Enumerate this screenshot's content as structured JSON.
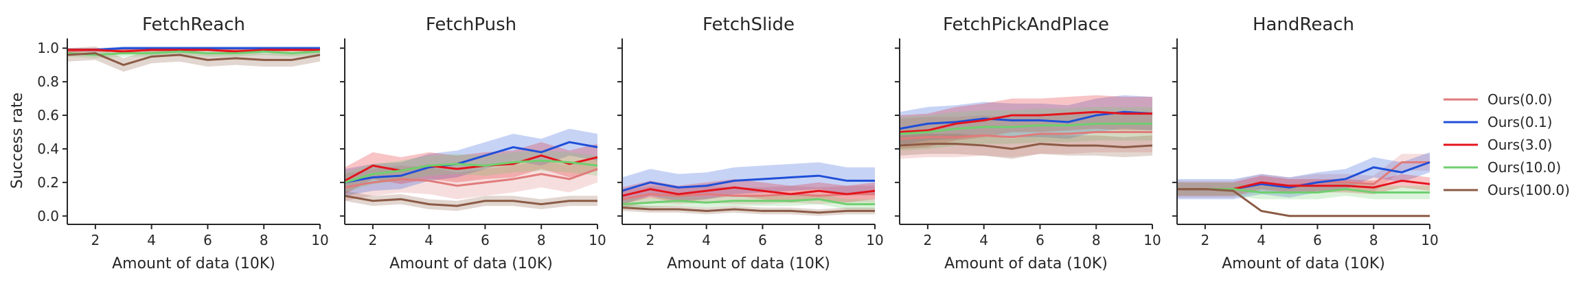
{
  "figure": {
    "ylabel": "Success rate",
    "xlabel": "Amount of data (10K)"
  },
  "legend": {
    "position": "right",
    "entries": [
      "Ours(0.0)",
      "Ours(0.1)",
      "Ours(3.0)",
      "Ours(10.0)",
      "Ours(100.0)"
    ]
  },
  "chart_data": [
    {
      "type": "line",
      "title": "FetchReach",
      "xlabel": "Amount of data (10K)",
      "ylabel": "Success rate",
      "x": [
        1,
        2,
        3,
        4,
        5,
        6,
        7,
        8,
        9,
        10
      ],
      "xlim": [
        1,
        10
      ],
      "ylim": [
        -0.05,
        1.05
      ],
      "xticks": [
        2,
        4,
        6,
        8,
        10
      ],
      "yticks": [
        0.0,
        0.2,
        0.4,
        0.6,
        0.8,
        1.0
      ],
      "grid": false,
      "series": [
        {
          "name": "Ours(0.0)",
          "color": "#e07b7b",
          "values": [
            0.98,
            0.99,
            0.99,
            0.99,
            0.99,
            0.99,
            0.99,
            0.99,
            0.99,
            0.99
          ],
          "band": 0.01
        },
        {
          "name": "Ours(0.1)",
          "color": "#1f4fd8",
          "values": [
            0.99,
            0.99,
            1.0,
            1.0,
            1.0,
            1.0,
            1.0,
            1.0,
            1.0,
            1.0
          ],
          "band": 0.01
        },
        {
          "name": "Ours(3.0)",
          "color": "#e3141c",
          "values": [
            0.99,
            0.99,
            0.98,
            0.99,
            0.99,
            0.99,
            0.98,
            0.99,
            0.99,
            0.99
          ],
          "band": 0.01
        },
        {
          "name": "Ours(10.0)",
          "color": "#6fcf6f",
          "values": [
            0.97,
            0.96,
            0.97,
            0.97,
            0.98,
            0.97,
            0.97,
            0.98,
            0.97,
            0.98
          ],
          "band": 0.02
        },
        {
          "name": "Ours(100.0)",
          "color": "#8b5a45",
          "values": [
            0.96,
            0.97,
            0.9,
            0.95,
            0.96,
            0.93,
            0.94,
            0.93,
            0.93,
            0.96
          ],
          "band": 0.04
        }
      ]
    },
    {
      "type": "line",
      "title": "FetchPush",
      "xlabel": "Amount of data (10K)",
      "x": [
        1,
        2,
        3,
        4,
        5,
        6,
        7,
        8,
        9,
        10
      ],
      "xlim": [
        1,
        10
      ],
      "ylim": [
        -0.05,
        1.05
      ],
      "xticks": [
        2,
        4,
        6,
        8,
        10
      ],
      "yticks": [
        0.0,
        0.2,
        0.4,
        0.6,
        0.8,
        1.0
      ],
      "grid": false,
      "series": [
        {
          "name": "Ours(0.0)",
          "color": "#e07b7b",
          "values": [
            0.17,
            0.2,
            0.22,
            0.21,
            0.18,
            0.2,
            0.22,
            0.25,
            0.22,
            0.28
          ],
          "band": 0.08
        },
        {
          "name": "Ours(0.1)",
          "color": "#1f4fd8",
          "values": [
            0.2,
            0.23,
            0.24,
            0.29,
            0.31,
            0.36,
            0.41,
            0.38,
            0.44,
            0.41
          ],
          "band": 0.08
        },
        {
          "name": "Ours(3.0)",
          "color": "#e3141c",
          "values": [
            0.21,
            0.3,
            0.27,
            0.3,
            0.28,
            0.3,
            0.31,
            0.36,
            0.31,
            0.35
          ],
          "band": 0.08
        },
        {
          "name": "Ours(10.0)",
          "color": "#6fcf6f",
          "values": [
            0.2,
            0.25,
            0.27,
            0.3,
            0.31,
            0.3,
            0.32,
            0.33,
            0.32,
            0.3
          ],
          "band": 0.06
        },
        {
          "name": "Ours(100.0)",
          "color": "#8b5a45",
          "values": [
            0.12,
            0.09,
            0.1,
            0.07,
            0.06,
            0.09,
            0.09,
            0.07,
            0.09,
            0.09
          ],
          "band": 0.03
        }
      ]
    },
    {
      "type": "line",
      "title": "FetchSlide",
      "xlabel": "Amount of data (10K)",
      "x": [
        1,
        2,
        3,
        4,
        5,
        6,
        7,
        8,
        9,
        10
      ],
      "xlim": [
        1,
        10
      ],
      "ylim": [
        -0.05,
        1.05
      ],
      "xticks": [
        2,
        4,
        6,
        8,
        10
      ],
      "yticks": [
        0.0,
        0.2,
        0.4,
        0.6,
        0.8,
        1.0
      ],
      "grid": false,
      "series": [
        {
          "name": "Ours(0.0)",
          "color": "#e07b7b",
          "values": [
            0.1,
            0.13,
            0.12,
            0.13,
            0.12,
            0.12,
            0.13,
            0.12,
            0.13,
            0.13
          ],
          "band": 0.05
        },
        {
          "name": "Ours(0.1)",
          "color": "#1f4fd8",
          "values": [
            0.15,
            0.2,
            0.17,
            0.18,
            0.21,
            0.22,
            0.23,
            0.24,
            0.21,
            0.21
          ],
          "band": 0.08
        },
        {
          "name": "Ours(3.0)",
          "color": "#e3141c",
          "values": [
            0.12,
            0.16,
            0.13,
            0.15,
            0.17,
            0.15,
            0.13,
            0.15,
            0.13,
            0.15
          ],
          "band": 0.05
        },
        {
          "name": "Ours(10.0)",
          "color": "#6fcf6f",
          "values": [
            0.07,
            0.08,
            0.09,
            0.08,
            0.09,
            0.09,
            0.09,
            0.1,
            0.07,
            0.07
          ],
          "band": 0.03
        },
        {
          "name": "Ours(100.0)",
          "color": "#8b5a45",
          "values": [
            0.05,
            0.04,
            0.04,
            0.03,
            0.04,
            0.03,
            0.03,
            0.02,
            0.03,
            0.03
          ],
          "band": 0.02
        }
      ]
    },
    {
      "type": "line",
      "title": "FetchPickAndPlace",
      "xlabel": "Amount of data (10K)",
      "x": [
        1,
        2,
        3,
        4,
        5,
        6,
        7,
        8,
        9,
        10
      ],
      "xlim": [
        1,
        10
      ],
      "ylim": [
        -0.05,
        1.05
      ],
      "xticks": [
        2,
        4,
        6,
        8,
        10
      ],
      "yticks": [
        0.0,
        0.2,
        0.4,
        0.6,
        0.8,
        1.0
      ],
      "grid": false,
      "series": [
        {
          "name": "Ours(0.0)",
          "color": "#e07b7b",
          "values": [
            0.46,
            0.47,
            0.47,
            0.48,
            0.47,
            0.49,
            0.49,
            0.5,
            0.5,
            0.5
          ],
          "band": 0.12
        },
        {
          "name": "Ours(0.1)",
          "color": "#1f4fd8",
          "values": [
            0.52,
            0.55,
            0.56,
            0.58,
            0.57,
            0.57,
            0.56,
            0.6,
            0.62,
            0.61
          ],
          "band": 0.1
        },
        {
          "name": "Ours(3.0)",
          "color": "#e3141c",
          "values": [
            0.5,
            0.51,
            0.55,
            0.57,
            0.6,
            0.6,
            0.61,
            0.62,
            0.61,
            0.61
          ],
          "band": 0.1
        },
        {
          "name": "Ours(10.0)",
          "color": "#6fcf6f",
          "values": [
            0.49,
            0.5,
            0.52,
            0.53,
            0.53,
            0.54,
            0.54,
            0.55,
            0.55,
            0.55
          ],
          "band": 0.1
        },
        {
          "name": "Ours(100.0)",
          "color": "#8b5a45",
          "values": [
            0.42,
            0.43,
            0.43,
            0.42,
            0.4,
            0.43,
            0.42,
            0.42,
            0.41,
            0.42
          ],
          "band": 0.06
        }
      ]
    },
    {
      "type": "line",
      "title": "HandReach",
      "xlabel": "Amount of data (10K)",
      "x": [
        1,
        2,
        3,
        4,
        5,
        6,
        7,
        8,
        9,
        10
      ],
      "xlim": [
        1,
        10
      ],
      "ylim": [
        -0.05,
        1.05
      ],
      "xticks": [
        2,
        4,
        6,
        8,
        10
      ],
      "yticks": [
        0.0,
        0.2,
        0.4,
        0.6,
        0.8,
        1.0
      ],
      "grid": false,
      "series": [
        {
          "name": "Ours(0.0)",
          "color": "#e07b7b",
          "values": [
            0.16,
            0.16,
            0.16,
            0.2,
            0.18,
            0.2,
            0.2,
            0.19,
            0.32,
            0.32
          ],
          "band": 0.05
        },
        {
          "name": "Ours(0.1)",
          "color": "#1f4fd8",
          "values": [
            0.16,
            0.16,
            0.16,
            0.19,
            0.17,
            0.2,
            0.22,
            0.29,
            0.26,
            0.32
          ],
          "band": 0.06
        },
        {
          "name": "Ours(3.0)",
          "color": "#e3141c",
          "values": [
            0.16,
            0.16,
            0.16,
            0.2,
            0.18,
            0.18,
            0.18,
            0.17,
            0.21,
            0.19
          ],
          "band": 0.04
        },
        {
          "name": "Ours(10.0)",
          "color": "#6fcf6f",
          "values": [
            0.16,
            0.16,
            0.16,
            0.14,
            0.14,
            0.14,
            0.16,
            0.14,
            0.14,
            0.14
          ],
          "band": 0.04
        },
        {
          "name": "Ours(100.0)",
          "color": "#8b5a45",
          "values": [
            0.16,
            0.16,
            0.15,
            0.03,
            0.0,
            0.0,
            0.0,
            0.0,
            0.0,
            0.0
          ],
          "band": 0.0
        }
      ]
    }
  ]
}
